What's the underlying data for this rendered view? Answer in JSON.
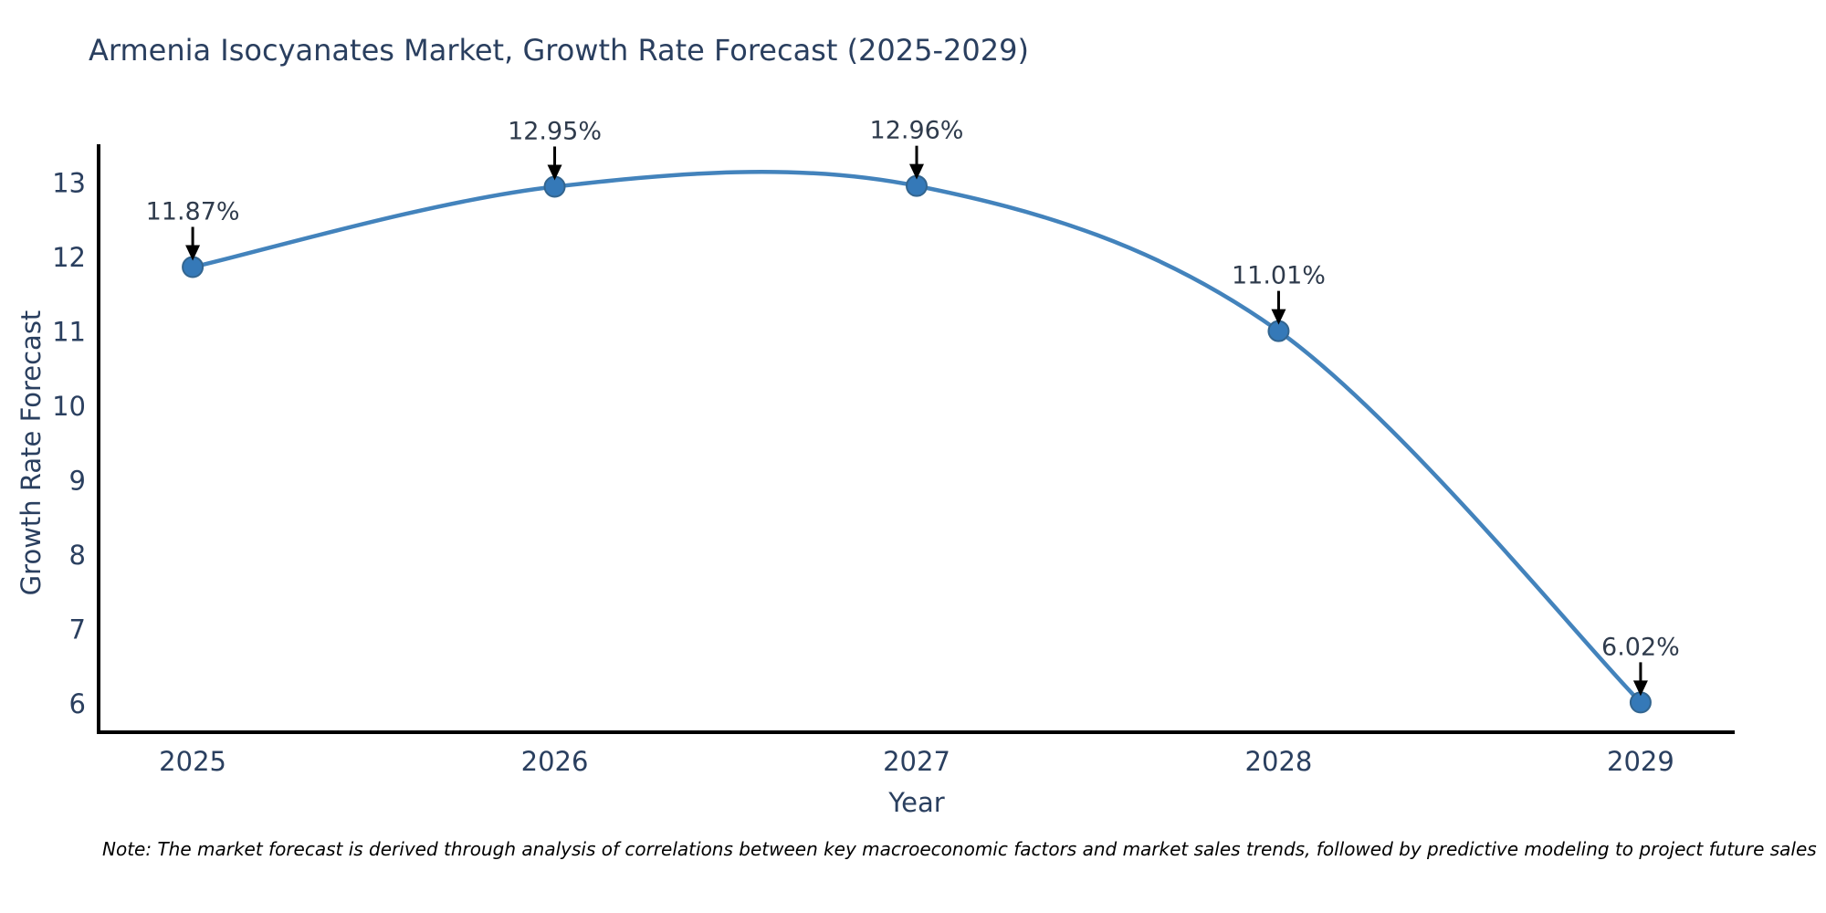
{
  "title": "Armenia Isocyanates Market, Growth Rate Forecast (2025-2029)",
  "note": "Note: The market forecast is derived through analysis of correlations between key macroeconomic factors and market sales trends, followed by predictive modeling to project future sales",
  "chart_data": {
    "type": "line",
    "title": "Armenia Isocyanates Market, Growth Rate Forecast (2025-2029)",
    "xlabel": "Year",
    "ylabel": "Growth Rate Forecast",
    "x": [
      2025,
      2026,
      2027,
      2028,
      2029
    ],
    "values": [
      11.87,
      12.95,
      12.96,
      11.01,
      6.02
    ],
    "point_labels": [
      "11.87%",
      "12.95%",
      "12.96%",
      "11.01%",
      "6.02%"
    ],
    "x_tick_labels": [
      "2025",
      "2026",
      "2027",
      "2028",
      "2029"
    ],
    "y_ticks": [
      6,
      7,
      8,
      9,
      10,
      11,
      12,
      13
    ],
    "xlim": [
      2024.74,
      2029.26
    ],
    "ylim": [
      5.62,
      13.52
    ],
    "grid": false,
    "legend": "none",
    "curve_style": "spline",
    "colors": {
      "line": "#4383bc",
      "marker_fill": "#3579b8",
      "marker_edge": "#33658f",
      "axis": "#000000",
      "tick_text": "#2a3f5f",
      "annotation_text": "#2f3b4c",
      "annotation_arrow": "#000000",
      "title_text": "#2a3f5f",
      "background": "#ffffff"
    }
  }
}
